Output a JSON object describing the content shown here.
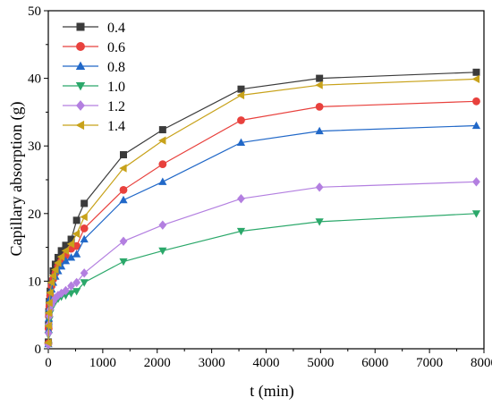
{
  "chart_data": {
    "type": "line",
    "title": "",
    "xlabel": "t (min)",
    "ylabel": "Capillary absorption (g)",
    "xlim": [
      0,
      8000
    ],
    "ylim": [
      0,
      50
    ],
    "xticks": [
      0,
      1000,
      2000,
      3000,
      4000,
      5000,
      6000,
      7000,
      8000
    ],
    "yticks": [
      0,
      10,
      20,
      30,
      40,
      50
    ],
    "grid": false,
    "legend_position": "top-left",
    "x": [
      1,
      5,
      10,
      20,
      35,
      60,
      90,
      130,
      180,
      240,
      320,
      420,
      520,
      660,
      1380,
      2100,
      3540,
      4980,
      7860
    ],
    "series": [
      {
        "name": "0.4",
        "marker": "square",
        "color": "#3b3b3b",
        "values": [
          1.0,
          3.5,
          5.5,
          7.0,
          8.5,
          10.0,
          11.5,
          12.5,
          13.5,
          14.5,
          15.3,
          16.2,
          19.0,
          21.5,
          28.7,
          32.4,
          38.4,
          40.0,
          40.9
        ]
      },
      {
        "name": "0.6",
        "marker": "circle",
        "color": "#e8413d",
        "values": [
          0.8,
          3.0,
          4.8,
          6.3,
          7.8,
          9.3,
          10.3,
          11.2,
          12.2,
          13.0,
          13.8,
          14.8,
          15.2,
          17.8,
          23.5,
          27.3,
          33.8,
          35.8,
          36.6
        ]
      },
      {
        "name": "0.8",
        "marker": "triangle-up",
        "color": "#2168c8",
        "values": [
          0.7,
          2.8,
          4.5,
          6.0,
          7.5,
          8.8,
          9.8,
          10.7,
          11.5,
          12.2,
          13.0,
          13.5,
          14.0,
          16.2,
          22.0,
          24.7,
          30.5,
          32.2,
          33.0
        ]
      },
      {
        "name": "1.0",
        "marker": "triangle-down",
        "color": "#2ba86a",
        "values": [
          0.5,
          2.0,
          3.2,
          4.3,
          5.3,
          6.0,
          6.5,
          7.0,
          7.4,
          7.7,
          7.9,
          8.2,
          8.5,
          9.8,
          12.9,
          14.5,
          17.4,
          18.8,
          20.0
        ]
      },
      {
        "name": "1.2",
        "marker": "diamond",
        "color": "#b37fe0",
        "values": [
          0.6,
          2.3,
          3.6,
          4.8,
          5.8,
          6.5,
          7.0,
          7.5,
          7.9,
          8.2,
          8.6,
          9.3,
          9.8,
          11.2,
          15.9,
          18.3,
          22.2,
          23.9,
          24.7
        ]
      },
      {
        "name": "1.4",
        "marker": "triangle-left",
        "color": "#c8a21a",
        "values": [
          0.9,
          3.4,
          5.3,
          6.8,
          8.3,
          9.8,
          10.8,
          11.7,
          12.7,
          13.6,
          14.5,
          15.5,
          17.0,
          19.5,
          26.7,
          30.8,
          37.5,
          39.0,
          39.9
        ]
      }
    ]
  }
}
